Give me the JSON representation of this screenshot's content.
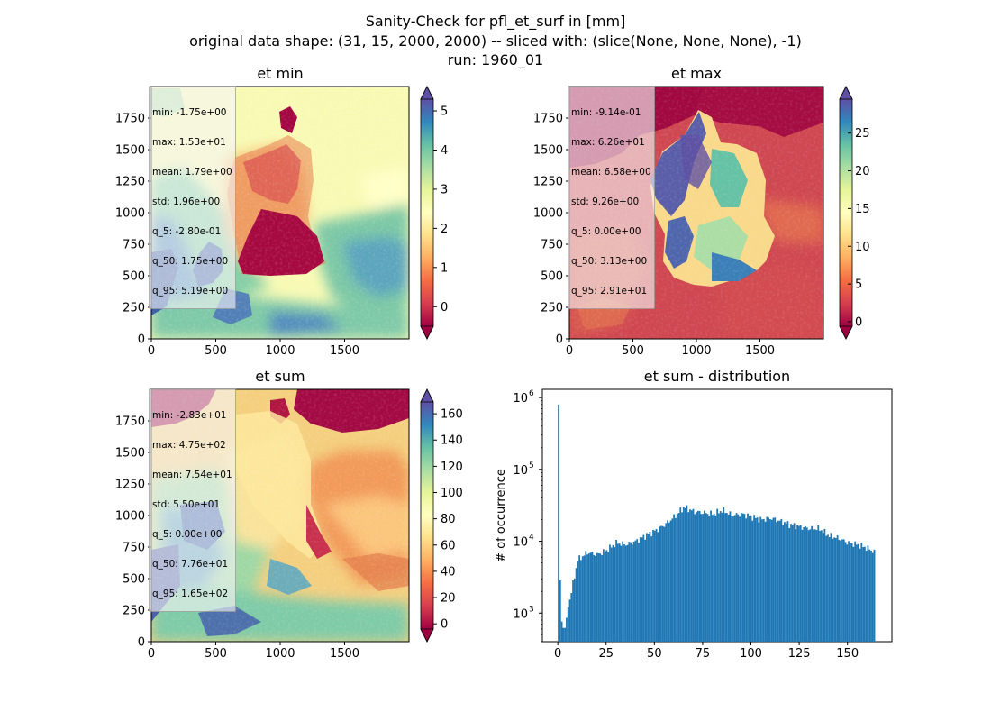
{
  "figure": {
    "title_line1": "Sanity-Check for pfl_et_surf in [mm]",
    "title_line2": "original data shape: (31, 15, 2000, 2000) -- sliced with: (slice(None, None, None), -1)",
    "title_line3": "run: 1960_01"
  },
  "chart_data": [
    {
      "type": "heatmap",
      "title": "et min",
      "xlim": [
        0,
        2000
      ],
      "ylim": [
        0,
        2000
      ],
      "x_ticks": [
        0,
        500,
        1000,
        1500
      ],
      "y_ticks": [
        0,
        250,
        500,
        750,
        1000,
        1250,
        1500,
        1750
      ],
      "colormap": "Spectral",
      "colorbar": {
        "min": -0.5,
        "max": 5.3,
        "ticks": [
          0,
          1,
          2,
          3,
          4,
          5
        ],
        "extend": "both"
      },
      "stats": [
        "min: -1.75e+00",
        "max: 1.53e+01",
        "mean: 1.79e+00",
        "std: 1.96e+00",
        "q_5: -2.80e-01",
        "q_50: 1.75e+00",
        "q_95: 5.19e+00"
      ]
    },
    {
      "type": "heatmap",
      "title": "et max",
      "xlim": [
        0,
        2000
      ],
      "ylim": [
        0,
        2000
      ],
      "x_ticks": [
        0,
        500,
        1000,
        1500
      ],
      "y_ticks": [
        0,
        250,
        500,
        750,
        1000,
        1250,
        1500,
        1750
      ],
      "colormap": "Spectral",
      "colorbar": {
        "min": -0.6,
        "max": 29.5,
        "ticks": [
          0,
          5,
          10,
          15,
          20,
          25
        ],
        "extend": "both"
      },
      "stats": [
        "min: -9.14e-01",
        "max: 6.26e+01",
        "mean: 6.58e+00",
        "std: 9.26e+00",
        "q_5: 0.00e+00",
        "q_50: 3.13e+00",
        "q_95: 2.91e+01"
      ]
    },
    {
      "type": "heatmap",
      "title": "et sum",
      "xlim": [
        0,
        2000
      ],
      "ylim": [
        0,
        2000
      ],
      "x_ticks": [
        0,
        500,
        1000,
        1500
      ],
      "y_ticks": [
        0,
        250,
        500,
        750,
        1000,
        1250,
        1500,
        1750
      ],
      "colormap": "Spectral",
      "colorbar": {
        "min": -4,
        "max": 169,
        "ticks": [
          0,
          20,
          40,
          60,
          80,
          100,
          120,
          140,
          160
        ],
        "extend": "both"
      },
      "stats": [
        "min: -2.83e+01",
        "max: 4.75e+02",
        "mean: 7.54e+01",
        "std: 5.50e+01",
        "q_5: 0.00e+00",
        "q_50: 7.76e+01",
        "q_95: 1.65e+02"
      ]
    },
    {
      "type": "bar",
      "title": "et sum - distribution",
      "ylabel": "# of occurrence",
      "yscale": "log",
      "xlim": [
        -8,
        173
      ],
      "ylim": [
        400,
        1300000
      ],
      "x_ticks": [
        0,
        25,
        50,
        75,
        100,
        125,
        150
      ],
      "y_tick_labels": [
        "10",
        "10",
        "10",
        "10"
      ],
      "y_tick_exponents": [
        "3",
        "4",
        "5",
        "6"
      ],
      "bin_width": 0.83,
      "bins_x": [
        0,
        1,
        2,
        3,
        5,
        8,
        10,
        15,
        20,
        25,
        30,
        35,
        40,
        45,
        50,
        55,
        60,
        65,
        70,
        75,
        80,
        85,
        90,
        95,
        100,
        105,
        110,
        115,
        120,
        125,
        130,
        135,
        140,
        145,
        150,
        155,
        160,
        164
      ],
      "bins_y": [
        800000,
        900,
        700,
        550,
        1200,
        3000,
        5500,
        7000,
        6500,
        7500,
        9500,
        9000,
        10000,
        12000,
        14000,
        17000,
        22000,
        30000,
        26000,
        25000,
        24000,
        27000,
        23000,
        24000,
        22000,
        20000,
        21000,
        19000,
        17000,
        16000,
        15000,
        15000,
        12000,
        11000,
        9500,
        9000,
        8000,
        7000
      ],
      "bar_color": "#1f77b4"
    }
  ]
}
